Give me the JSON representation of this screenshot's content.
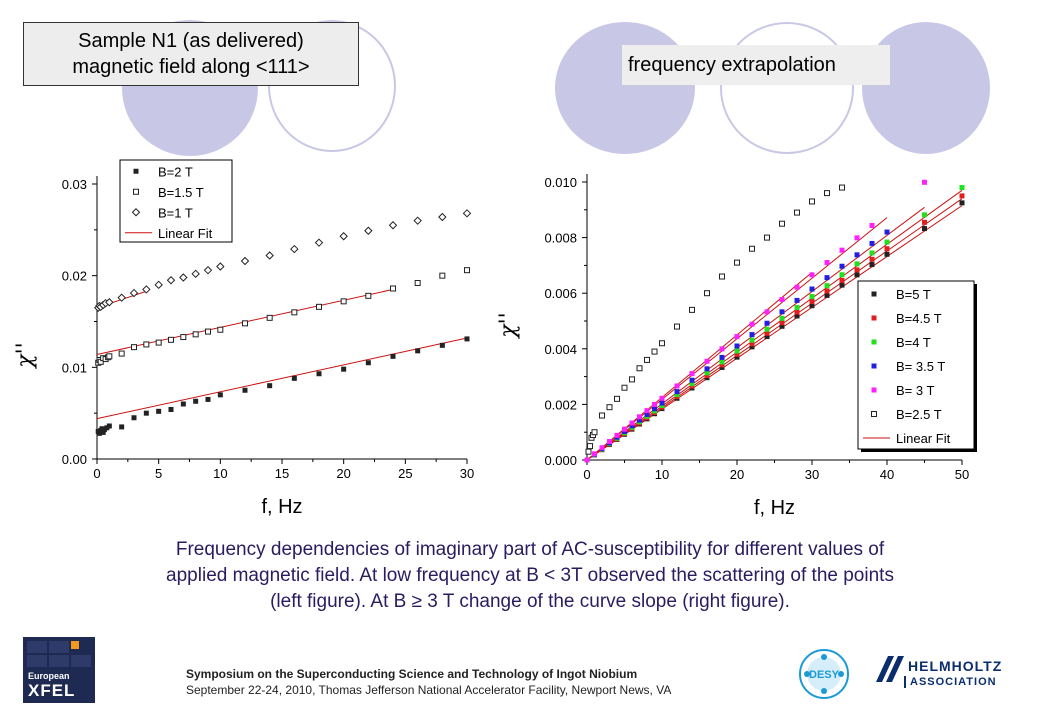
{
  "slide": {
    "title_left": [
      "Sample N1 (as delivered)",
      "magnetic field along <111>"
    ],
    "title_right": "frequency extrapolation",
    "caption": [
      "Frequency dependencies of imaginary part of AC-susceptibility for different values of",
      "applied magnetic field. At low frequency at B < 3T observed the scattering of the points",
      "(left figure). At B ≥ 3 T change of the curve slope (right figure)."
    ],
    "footer_line1": "Symposium on the Superconducting Science and Technology of Ingot Niobium",
    "footer_line2": "September 22-24,  2010, Thomas  Jefferson National Accelerator Facility, Newport News,  VA",
    "logo_xfel": [
      "European",
      "XFEL"
    ],
    "logo_desy": "DESY",
    "logo_helmholtz": [
      "HELMHOLTZ",
      "ASSOCIATION"
    ],
    "decor_colors": {
      "circle_fill": "#c8c8e6",
      "circle_stroke": "#c8c8e6"
    }
  },
  "chart_data": [
    {
      "type": "scatter",
      "xlabel": "f, Hz",
      "ylabel": "χ''",
      "xlim": [
        0,
        30
      ],
      "ylim": [
        0,
        0.03
      ],
      "xticks": [
        "0",
        "5",
        "10",
        "15",
        "20",
        "25",
        "30"
      ],
      "yticks": [
        "0.00",
        "0.01",
        "0.02",
        "0.03"
      ],
      "legend_placement": "top-right",
      "legend": [
        "B=2 T",
        "B=1.5 T",
        "B=1 T",
        "Linear Fit"
      ],
      "series": [
        {
          "name": "B=2 T",
          "marker": "filled-square",
          "x": [
            0.1,
            0.2,
            0.3,
            0.4,
            0.5,
            0.6,
            0.8,
            1,
            2,
            3,
            4,
            5,
            6,
            7,
            8,
            9,
            10,
            12,
            14,
            16,
            18,
            20,
            22,
            24,
            26,
            28,
            30
          ],
          "y": [
            0.003,
            0.0028,
            0.0031,
            0.0033,
            0.0029,
            0.0032,
            0.0034,
            0.0036,
            0.0035,
            0.0045,
            0.005,
            0.0052,
            0.0054,
            0.006,
            0.0063,
            0.0065,
            0.007,
            0.0075,
            0.008,
            0.0088,
            0.0093,
            0.0098,
            0.0105,
            0.0112,
            0.0118,
            0.0124,
            0.0131
          ]
        },
        {
          "name": "B=1.5 T",
          "marker": "open-square",
          "x": [
            0.1,
            0.2,
            0.3,
            0.5,
            0.7,
            0.9,
            1,
            2,
            3,
            4,
            5,
            6,
            7,
            8,
            9,
            10,
            12,
            14,
            16,
            18,
            20,
            22,
            24,
            26,
            28,
            30
          ],
          "y": [
            0.0105,
            0.0108,
            0.0106,
            0.011,
            0.0109,
            0.0111,
            0.0112,
            0.0115,
            0.0122,
            0.0125,
            0.0127,
            0.013,
            0.0133,
            0.0136,
            0.0139,
            0.0141,
            0.0148,
            0.0154,
            0.016,
            0.0166,
            0.0172,
            0.0178,
            0.0186,
            0.0192,
            0.02,
            0.0206
          ]
        },
        {
          "name": "B=1 T",
          "marker": "open-diamond",
          "x": [
            0.1,
            0.2,
            0.3,
            0.5,
            0.7,
            1,
            2,
            3,
            4,
            5,
            6,
            7,
            8,
            9,
            10,
            12,
            14,
            16,
            18,
            20,
            22,
            24,
            26,
            28,
            30
          ],
          "y": [
            0.0165,
            0.0167,
            0.0166,
            0.0168,
            0.017,
            0.0171,
            0.0176,
            0.0181,
            0.0185,
            0.019,
            0.0195,
            0.0198,
            0.0202,
            0.0206,
            0.021,
            0.0216,
            0.0222,
            0.0229,
            0.0236,
            0.0243,
            0.0249,
            0.0255,
            0.026,
            0.0264,
            0.0268
          ]
        }
      ],
      "fits": [
        {
          "x": [
            0,
            30
          ],
          "y": [
            0.0044,
            0.0132
          ]
        },
        {
          "x": [
            0,
            24
          ],
          "y": [
            0.0114,
            0.0185
          ]
        },
        {
          "x": [
            0,
            4
          ],
          "y": [
            0.0165,
            0.0183
          ]
        }
      ]
    },
    {
      "type": "scatter",
      "xlabel": "f, Hz",
      "ylabel": "χ''",
      "xlim": [
        0,
        50
      ],
      "ylim": [
        0,
        0.01
      ],
      "xticks": [
        "0",
        "10",
        "20",
        "30",
        "40",
        "50"
      ],
      "yticks": [
        "0.000",
        "0.002",
        "0.004",
        "0.006",
        "0.008",
        "0.010"
      ],
      "legend_placement": "bottom-right",
      "legend": [
        "B=5 T",
        "B=4.5 T",
        "B=4 T",
        "B= 3.5 T",
        "B= 3 T",
        "B=2.5 T",
        "Linear Fit"
      ],
      "series": [
        {
          "name": "B=5 T",
          "color": "#222222",
          "marker": "filled-square",
          "slope": 0.000185,
          "x": [
            0,
            1,
            2,
            3,
            4,
            5,
            6,
            7,
            8,
            9,
            10,
            12,
            14,
            16,
            18,
            20,
            22,
            24,
            26,
            28,
            30,
            32,
            34,
            36,
            38,
            40,
            45,
            50
          ],
          "intercept": 0.0
        },
        {
          "name": "B=4.5 T",
          "color": "#e02020",
          "marker": "filled-square",
          "slope": 0.00019,
          "x": [
            0,
            1,
            2,
            3,
            4,
            5,
            6,
            7,
            8,
            9,
            10,
            12,
            14,
            16,
            18,
            20,
            22,
            24,
            26,
            28,
            30,
            32,
            34,
            36,
            38,
            40,
            45,
            50
          ],
          "intercept": 0.0
        },
        {
          "name": "B=4 T",
          "color": "#20e020",
          "marker": "filled-square",
          "slope": 0.000196,
          "x": [
            0,
            1,
            2,
            3,
            4,
            5,
            6,
            7,
            8,
            9,
            10,
            12,
            14,
            16,
            18,
            20,
            22,
            24,
            26,
            28,
            30,
            32,
            34,
            36,
            38,
            40,
            45,
            50
          ],
          "intercept": 0.0
        },
        {
          "name": "B= 3.5 T",
          "color": "#2020e0",
          "marker": "filled-square",
          "slope": 0.000205,
          "x": [
            0,
            1,
            2,
            3,
            4,
            5,
            6,
            7,
            8,
            9,
            10,
            12,
            14,
            16,
            18,
            20,
            22,
            24,
            26,
            28,
            30,
            32,
            34,
            36,
            38,
            40
          ],
          "intercept": 0.0
        },
        {
          "name": "B= 3 T",
          "color": "#ff22ff",
          "marker": "filled-square",
          "slope": 0.000222,
          "x": [
            0,
            1,
            2,
            3,
            4,
            5,
            6,
            7,
            8,
            9,
            10,
            12,
            14,
            16,
            18,
            20,
            22,
            24,
            26,
            28,
            30,
            32,
            34,
            36,
            38,
            45
          ],
          "intercept": 0.0
        },
        {
          "name": "B=2.5 T",
          "color": "#222222",
          "marker": "open-square",
          "x": [
            0.2,
            0.4,
            0.6,
            0.8,
            1,
            2,
            3,
            4,
            5,
            6,
            7,
            8,
            9,
            10,
            12,
            14,
            16,
            18,
            20,
            22,
            24,
            26,
            28,
            30,
            32,
            34
          ],
          "y": [
            0.0003,
            0.0005,
            0.0008,
            0.0009,
            0.001,
            0.0016,
            0.0019,
            0.0022,
            0.0026,
            0.0029,
            0.0033,
            0.0036,
            0.0039,
            0.0042,
            0.0048,
            0.0054,
            0.006,
            0.0066,
            0.0071,
            0.0076,
            0.008,
            0.0085,
            0.0089,
            0.0093,
            0.0096,
            0.0098
          ]
        }
      ],
      "fits": [
        {
          "x": [
            0,
            50
          ],
          "slope": 0.000183
        },
        {
          "x": [
            0,
            50
          ],
          "slope": 0.000188
        },
        {
          "x": [
            0,
            50
          ],
          "slope": 0.000194
        },
        {
          "x": [
            0,
            45
          ],
          "slope": 0.000202
        },
        {
          "x": [
            0,
            40
          ],
          "slope": 0.000218
        },
        {
          "x": [
            0,
            30
          ],
          "slope": 0.000225
        }
      ]
    }
  ]
}
